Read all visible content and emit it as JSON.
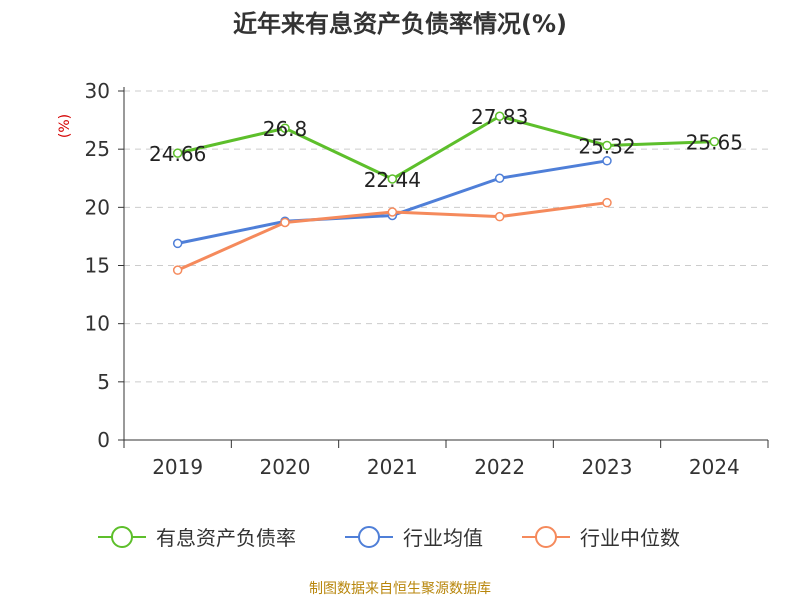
{
  "chart_data": {
    "type": "line",
    "title": "近年来有息资产负债率情况(%)",
    "ylabel": "(%)",
    "xlabel": "",
    "categories": [
      "2019",
      "2020",
      "2021",
      "2022",
      "2023",
      "2024"
    ],
    "ylim": [
      0,
      30
    ],
    "yticks": [
      0,
      5,
      10,
      15,
      20,
      25,
      30
    ],
    "grid": true,
    "legend_position": "bottom",
    "series": [
      {
        "name": "有息资产负债率",
        "color": "#5dbf2b",
        "values": [
          24.66,
          26.8,
          22.44,
          27.83,
          25.32,
          25.65
        ],
        "labels": [
          "24.66",
          "26.8",
          "22.44",
          "27.83",
          "25.32",
          "25.65"
        ]
      },
      {
        "name": "行业均值",
        "color": "#4f7fd8",
        "values": [
          16.9,
          18.8,
          19.3,
          22.5,
          24.0,
          null
        ]
      },
      {
        "name": "行业中位数",
        "color": "#f58a5c",
        "values": [
          14.6,
          18.7,
          19.6,
          19.2,
          20.4,
          null
        ]
      }
    ]
  },
  "footer": {
    "source": "制图数据来自恒生聚源数据库"
  }
}
